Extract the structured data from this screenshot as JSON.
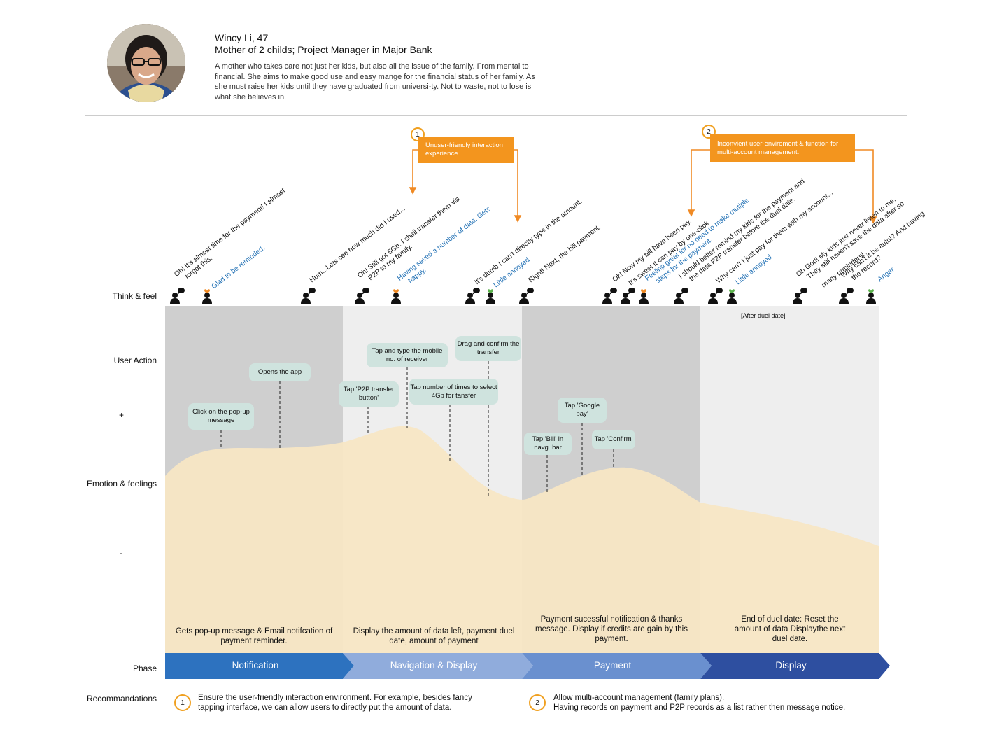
{
  "persona": {
    "name": "Wincy Li, 47",
    "role": "Mother of 2 childs; Project Manager in Major Bank",
    "description": "A mother who takes care not just her kids, but also all the issue of the family. From mental to financial. She aims to make good use and easy mange for the financial status of her family. As she must raise her kids until they have graduated from universi-ty. Not to waste, not to lose is what she believes in."
  },
  "row_labels": {
    "think_feel": "Think & feel",
    "user_action": "User Action",
    "plus": "+",
    "emotion": "Emotion & feelings",
    "minus": "-",
    "phase": "Phase",
    "recommendations": "Recommandations"
  },
  "pain_points": [
    {
      "number": "1",
      "text": "Unuser-friendly interaction experience."
    },
    {
      "number": "2",
      "text": "Inconvient user-enviroment & function for multi-account management."
    }
  ],
  "thoughts": [
    {
      "line1": "Oh! It's almost time for the payment! I almost",
      "line2": "forgot this.",
      "sentiment": ""
    },
    {
      "line1": "Glad to be reminded.",
      "line2": "",
      "sentiment": "positive"
    },
    {
      "line1": "Hum...Lets see how much did I used...",
      "line2": "",
      "sentiment": ""
    },
    {
      "line1": "Oh! Still got 5Gb. I shall transfer them via",
      "line2": "P2P to my family.",
      "sentiment": ""
    },
    {
      "line1": "Having saved a number of data. Gets",
      "line2": "happy.",
      "sentiment": "positive"
    },
    {
      "line1": "It's dumb I can't directly type in the amount.",
      "line2": "",
      "sentiment": ""
    },
    {
      "line1": "Little annoyed",
      "line2": "",
      "sentiment": "positive"
    },
    {
      "line1": "Right! Next, the bill payment.",
      "line2": "",
      "sentiment": ""
    },
    {
      "line1": "Ok! Now my bill have been pay.",
      "line2": "",
      "sentiment": ""
    },
    {
      "line1": "It's sweet it can pay by one-click",
      "line2": "",
      "sentiment": ""
    },
    {
      "line1": "Feeling great for no need to make mutiple",
      "line2": "steps for the payment.",
      "sentiment": "positive"
    },
    {
      "line1": "I should better remind my kids for the payment and",
      "line2": "the data P2P transfer before the duel date.",
      "sentiment": ""
    },
    {
      "line1": "Why can't I just pay for them with my account...",
      "line2": "",
      "sentiment": ""
    },
    {
      "line1": "Little annoyed",
      "line2": "",
      "sentiment": "positive"
    },
    {
      "line1": "Oh God! My kids just never listen to me.",
      "line2": "They still haven't save the data after so",
      "sentiment": ""
    },
    {
      "line1": "many reminders!",
      "line2": "",
      "sentiment": ""
    },
    {
      "line1": "Why can't it be auto!? And having",
      "line2": "the record?",
      "sentiment": ""
    },
    {
      "line1": "Angar",
      "line2": "",
      "sentiment": "positive"
    }
  ],
  "after_date_label": "[After duel date]",
  "actions": [
    {
      "text": "Click on the pop-up message"
    },
    {
      "text": "Opens the app"
    },
    {
      "text": "Tap 'P2P transfer button'"
    },
    {
      "text": "Tap and type the mobile no. of receiver"
    },
    {
      "text": "Tap number of times to select 4Gb for tansfer"
    },
    {
      "text": "Drag and confirm the transfer"
    },
    {
      "text": "Tap 'Bill' in navg. bar"
    },
    {
      "text": "Tap 'Google pay'"
    },
    {
      "text": "Tap 'Confirm'"
    }
  ],
  "phase_descriptions": [
    "Gets pop-up message & Email notifcation of payment reminder.",
    "Display the amount of data left, payment duel date, amount of payment",
    "Payment sucessful notification & thanks message. Display if credits are gain by this payment.",
    "End of duel date: Reset the amount of data Displaythe next duel date."
  ],
  "phases": [
    "Notification",
    "Navigation & Display",
    "Payment",
    "Display"
  ],
  "recommendations": [
    {
      "number": "1",
      "line1": "Ensure the user-friendly interaction environment. For example, besides fancy",
      "line2": "tapping interface, we can allow users to directly put the amount of data."
    },
    {
      "number": "2",
      "line1": "Allow multi-account management (family plans).",
      "line2": "Having records on payment and P2P records as a list rather then message notice."
    }
  ],
  "colors": {
    "phase1": "#2d72bf",
    "phase2": "#90acdc",
    "phase3": "#6a90cf",
    "phase4": "#2e4fa0",
    "emotion_fill": "#f8e6c4",
    "bubble": "#cfe3de",
    "pain": "#f3951e",
    "positive_text": "#1f6fb4",
    "heart_green": "#5bb14c",
    "heart_orange": "#f08a24"
  }
}
